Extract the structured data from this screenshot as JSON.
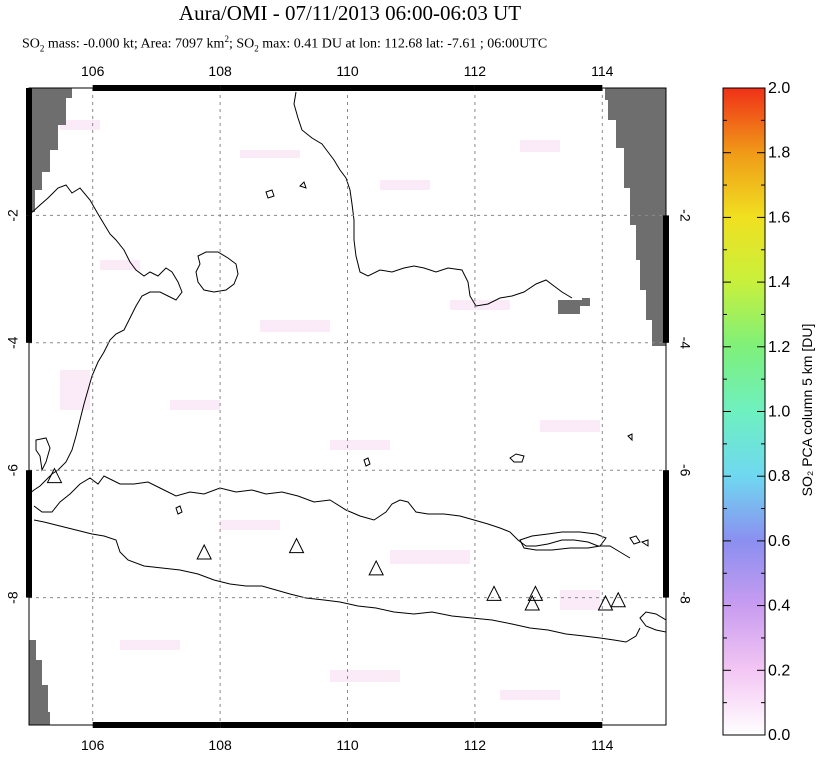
{
  "header": {
    "title": "Aura/OMI - 07/11/2013 06:00-06:03 UT",
    "subtitle_parts": {
      "mass_prefix": "SO",
      "mass_sub": "2",
      "mass_rest": " mass: -0.000 kt; Area: 7097 km",
      "area_sup": "2",
      "max_prefix": "; SO",
      "max_sub": "2",
      "max_rest": " max: 0.41 DU at lon: 112.68 lat: -7.61 ; 06:00UTC"
    }
  },
  "map": {
    "lon_ticks": [
      "106",
      "108",
      "110",
      "112",
      "114"
    ],
    "lat_ticks": [
      "-2",
      "-4",
      "-6",
      "-8"
    ],
    "lon_values": [
      106,
      108,
      110,
      112,
      114
    ],
    "lat_values": [
      -2,
      -4,
      -6,
      -8
    ],
    "lon_range": [
      105,
      115
    ],
    "lat_range": [
      -10,
      0
    ],
    "volcanoes": [
      {
        "lon": 105.4,
        "lat": -6.1
      },
      {
        "lon": 107.75,
        "lat": -7.3
      },
      {
        "lon": 109.2,
        "lat": -7.2
      },
      {
        "lon": 110.45,
        "lat": -7.55
      },
      {
        "lon": 112.3,
        "lat": -7.95
      },
      {
        "lon": 112.95,
        "lat": -7.95
      },
      {
        "lon": 112.9,
        "lat": -8.1
      },
      {
        "lon": 114.05,
        "lat": -8.1
      },
      {
        "lon": 114.25,
        "lat": -8.05
      }
    ],
    "colors": {
      "no_data": "#6e6e6e",
      "grid": "#8a8a8a",
      "coast": "#000000",
      "low_so2": "#fbe9f7"
    }
  },
  "colorbar": {
    "label": "SO₂ PCA column 5 km [DU]",
    "ticks": [
      "0.0",
      "0.2",
      "0.4",
      "0.6",
      "0.8",
      "1.0",
      "1.2",
      "1.4",
      "1.6",
      "1.8",
      "2.0"
    ],
    "range": [
      0,
      2
    ],
    "stops": [
      "#ffffff",
      "#f3c6f3",
      "#c89cf0",
      "#8b8ff0",
      "#6fd8f0",
      "#6ef0c0",
      "#7ef07a",
      "#c8f03c",
      "#f0e020",
      "#f09a18",
      "#f03018"
    ]
  }
}
